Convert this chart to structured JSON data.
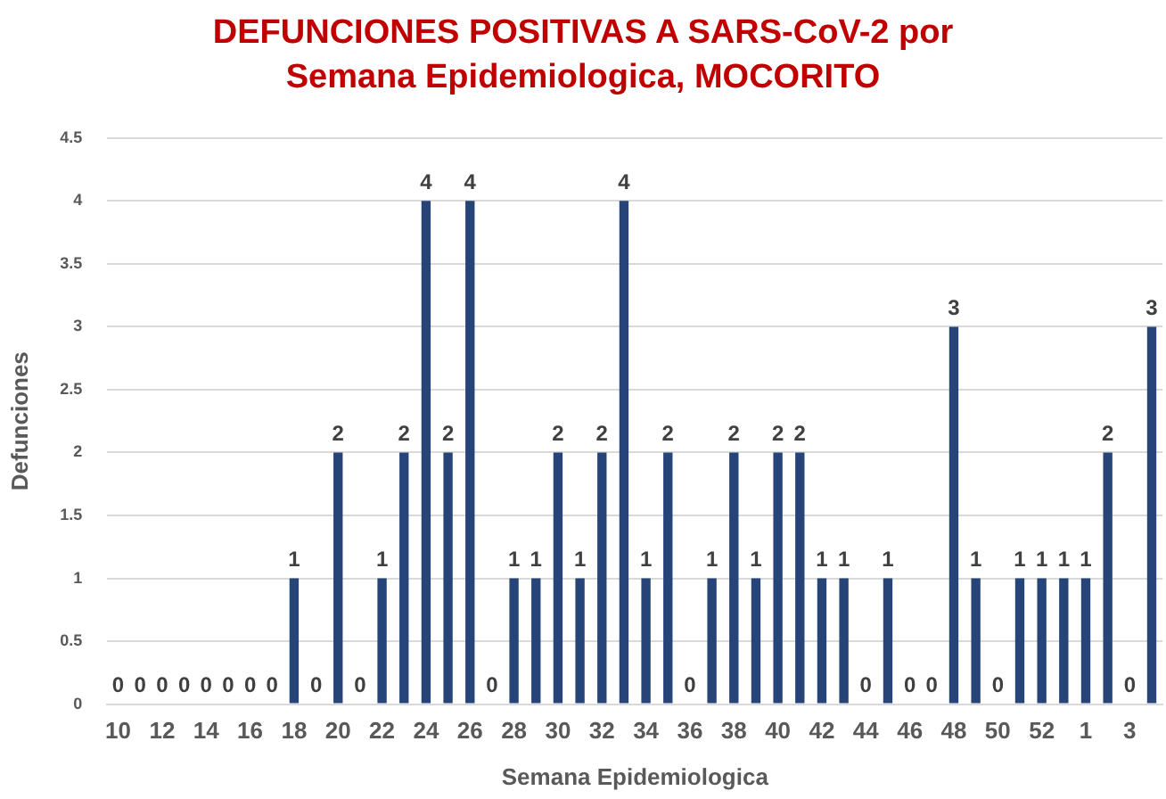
{
  "chart_data": {
    "type": "bar",
    "title": "DEFUNCIONES POSITIVAS A SARS-CoV-2 por Semana Epidemiologica, MOCORITO",
    "xlabel": "Semana Epidemiologica",
    "ylabel": "Defunciones",
    "categories": [
      "10",
      null,
      "12",
      null,
      "14",
      null,
      "16",
      null,
      "18",
      null,
      "20",
      null,
      "22",
      null,
      "24",
      null,
      "26",
      null,
      "28",
      null,
      "30",
      null,
      "32",
      null,
      "34",
      null,
      "36",
      null,
      "38",
      null,
      "40",
      null,
      "42",
      null,
      "44",
      null,
      "46",
      null,
      "48",
      null,
      "50",
      null,
      "52",
      null,
      "1",
      null,
      "3",
      null
    ],
    "values": [
      0,
      0,
      0,
      0,
      0,
      0,
      0,
      0,
      1,
      0,
      2,
      0,
      1,
      2,
      4,
      2,
      4,
      0,
      1,
      1,
      2,
      1,
      2,
      4,
      1,
      2,
      0,
      1,
      2,
      1,
      2,
      2,
      1,
      1,
      0,
      1,
      0,
      0,
      3,
      1,
      0,
      1,
      1,
      1,
      1,
      2,
      0,
      3
    ],
    "color": "#264478",
    "ylim": [
      0,
      4.5
    ],
    "yticks": [
      0,
      0.5,
      1,
      1.5,
      2,
      2.5,
      3,
      3.5,
      4,
      4.5
    ],
    "grid": "y",
    "data_labels": true
  }
}
